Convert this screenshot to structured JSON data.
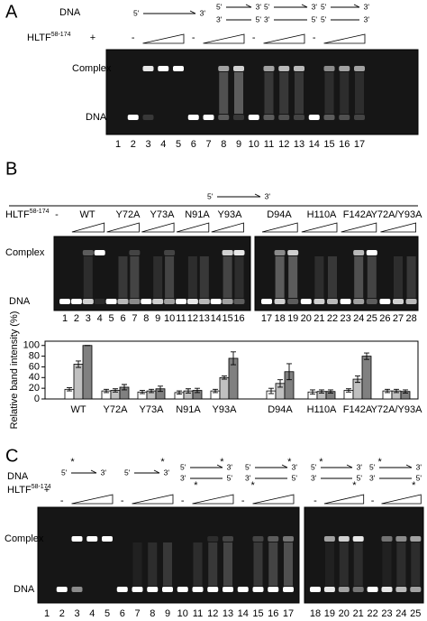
{
  "panel_a": {
    "label": "A",
    "dna_label": "DNA",
    "hltf": {
      "text": "HLTF",
      "sup": "58-174"
    },
    "hltf_row": [
      "+",
      "-",
      "-",
      "-",
      "-"
    ],
    "substrates": [
      {
        "top": [
          "5'",
          "3'"
        ]
      },
      {
        "top": [
          "5'",
          "3'"
        ],
        "bottom": [
          "3'",
          "5'"
        ]
      },
      {
        "top": [
          "5'",
          "3'"
        ],
        "bottom": [
          "3'",
          "5'"
        ]
      },
      {
        "top": [
          "5'",
          "3'"
        ],
        "bottom": [
          "5'",
          "3'"
        ]
      }
    ],
    "complex_label": "Complex",
    "band_label": "DNA",
    "lanes": [
      1,
      2,
      3,
      4,
      5,
      6,
      7,
      8,
      9,
      10,
      11,
      12,
      13,
      14,
      15,
      16,
      17
    ]
  },
  "panel_b": {
    "label": "B",
    "substrate": {
      "top": [
        "5'",
        "3'"
      ]
    },
    "hltf": {
      "text": "HLTF",
      "sup": "58-174"
    },
    "hltf_row": [
      "-",
      "WT",
      "Y72A",
      "Y73A",
      "N91A",
      "Y93A",
      "D94A",
      "H110A",
      "F142A",
      "Y72A/Y93A"
    ],
    "complex_label": "Complex",
    "band_label": "DNA",
    "lanes": [
      1,
      2,
      3,
      4,
      5,
      6,
      7,
      8,
      9,
      10,
      11,
      12,
      13,
      14,
      15,
      16,
      17,
      18,
      19,
      20,
      21,
      22,
      23,
      24,
      25,
      26,
      27,
      28
    ]
  },
  "panel_c": {
    "label": "C",
    "dna_label": "DNA",
    "hltf": {
      "text": "HLTF",
      "sup": "58-174"
    },
    "hltf_row": [
      "+",
      "-",
      "-",
      "-",
      "-",
      "-",
      "-"
    ],
    "substrates": [
      {
        "top": [
          "5'",
          "3'"
        ],
        "stars": [
          "*"
        ]
      },
      {
        "top": [
          "5'",
          "3'"
        ],
        "stars": [
          "*"
        ]
      },
      {
        "top": [
          "5'",
          "3'"
        ],
        "bottom": [
          "3'",
          "5'"
        ],
        "stars": [
          "*",
          "*"
        ]
      },
      {
        "top": [
          "5'",
          "3'"
        ],
        "bottom": [
          "3'",
          "5'"
        ],
        "stars": [
          "*",
          "*"
        ]
      },
      {
        "top": [
          "5'",
          "3'"
        ],
        "bottom": [
          "3'",
          "5'"
        ],
        "stars": [
          "*",
          "*"
        ]
      },
      {
        "top": [
          "5'",
          "3'"
        ],
        "bottom": [
          "3'",
          "5'"
        ],
        "stars": [
          "*",
          "*"
        ]
      }
    ],
    "complex_label": "Complex",
    "band_label": "DNA",
    "lanes": [
      1,
      2,
      3,
      4,
      5,
      6,
      7,
      8,
      9,
      10,
      11,
      12,
      13,
      14,
      15,
      16,
      17,
      18,
      19,
      20,
      21,
      22,
      23,
      24,
      25
    ]
  },
  "chart_data": {
    "type": "bar",
    "y_label": "Relative band intensity (%)",
    "categories": [
      "WT",
      "Y72A",
      "Y73A",
      "N91A",
      "Y93A",
      "D94A",
      "H110A",
      "F142A",
      "Y72A/Y93A"
    ],
    "series": [
      {
        "color": "#ffffff",
        "values": [
          18,
          15,
          13,
          12,
          15,
          15,
          13,
          16,
          15
        ],
        "errors": [
          3,
          3,
          3,
          3,
          3,
          5,
          4,
          3,
          3
        ]
      },
      {
        "color": "#c0c0c0",
        "values": [
          65,
          16,
          15,
          15,
          40,
          29,
          14,
          37,
          15
        ],
        "errors": [
          6,
          3,
          3,
          4,
          3,
          7,
          3,
          6,
          3
        ]
      },
      {
        "color": "#808080",
        "values": [
          100,
          22,
          19,
          16,
          76,
          51,
          14,
          80,
          14
        ],
        "errors": [
          0,
          5,
          5,
          4,
          12,
          15,
          3,
          6,
          3
        ]
      }
    ],
    "ylim": [
      0,
      108
    ],
    "yticks": [
      0,
      20,
      40,
      60,
      80,
      100
    ],
    "grid": false
  }
}
